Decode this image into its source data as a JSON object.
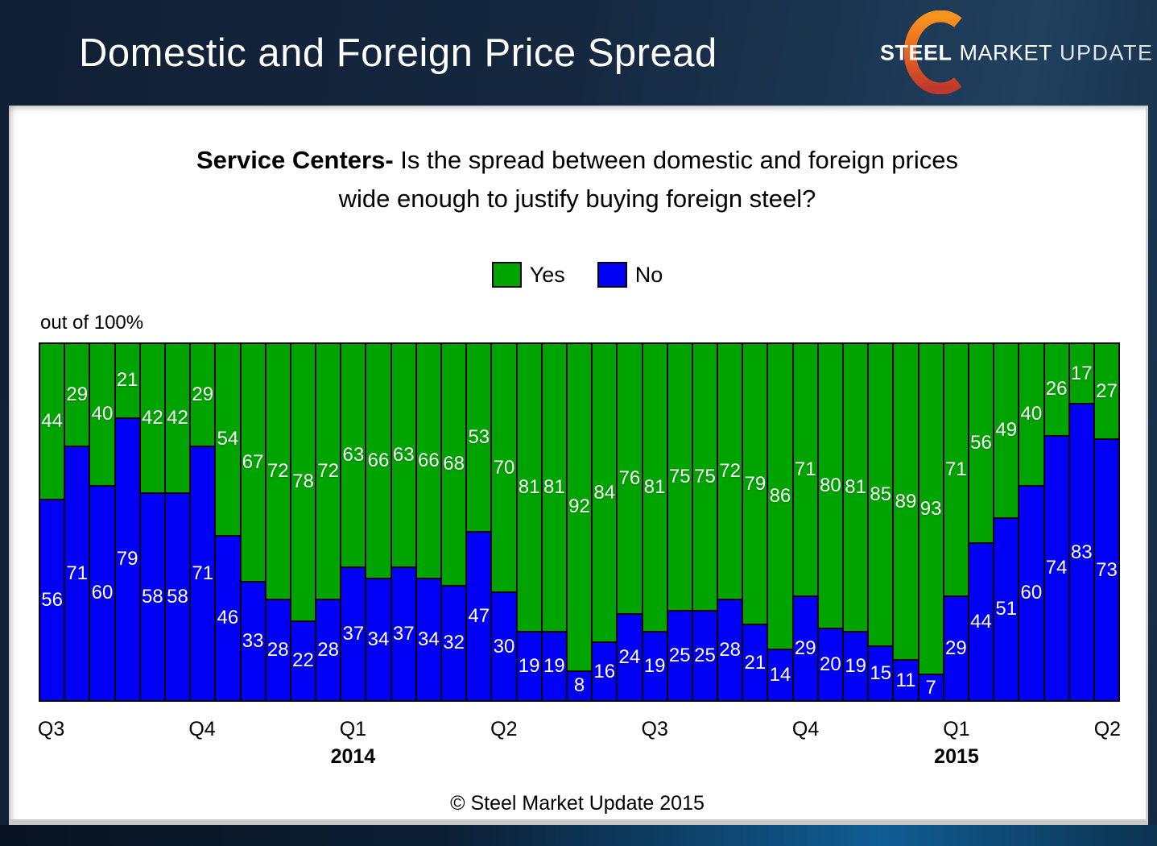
{
  "header": {
    "title": "Domestic and Foreign Price Spread",
    "logo": {
      "steel": "STEEL",
      "market": "MARKET",
      "update": "UPDATE"
    }
  },
  "chart": {
    "title_bold": "Service Centers-",
    "title_rest": " Is the spread between domestic and foreign prices",
    "title_line2": "wide enough to justify buying foreign steel?",
    "axis_note": "out of 100%"
  },
  "footer": {
    "copyright": "© Steel Market Update 2015"
  },
  "colors": {
    "yes_green": "#00a400",
    "no_blue": "#0000f6",
    "logo_orange_top": "#f7941e",
    "logo_red_bottom": "#c0392b"
  },
  "chart_data": {
    "type": "bar",
    "stacked": true,
    "ylim": [
      0,
      100
    ],
    "legend_position": "top-center",
    "bar_count": 43,
    "series": [
      {
        "name": "Yes",
        "color": "#00a400",
        "values": [
          44,
          29,
          40,
          21,
          42,
          42,
          29,
          54,
          67,
          72,
          78,
          72,
          63,
          66,
          63,
          66,
          68,
          53,
          70,
          81,
          81,
          92,
          84,
          76,
          81,
          75,
          75,
          72,
          79,
          86,
          71,
          80,
          81,
          85,
          89,
          93,
          71,
          56,
          49,
          40,
          26,
          17,
          27
        ]
      },
      {
        "name": "No",
        "color": "#0000f6",
        "values": [
          56,
          71,
          60,
          79,
          58,
          58,
          71,
          46,
          33,
          28,
          22,
          28,
          37,
          34,
          37,
          34,
          32,
          47,
          30,
          19,
          19,
          8,
          16,
          24,
          19,
          25,
          25,
          28,
          21,
          14,
          29,
          20,
          19,
          15,
          11,
          7,
          29,
          44,
          51,
          60,
          74,
          83,
          73
        ]
      }
    ],
    "x_tick_every": 6,
    "x_tick_labels": [
      "Q3",
      "Q4",
      "Q1",
      "Q2",
      "Q3",
      "Q4",
      "Q1",
      "Q2"
    ],
    "year_labels": [
      {
        "label": "2014",
        "tick_index": 2
      },
      {
        "label": "2015",
        "tick_index": 6
      }
    ]
  }
}
